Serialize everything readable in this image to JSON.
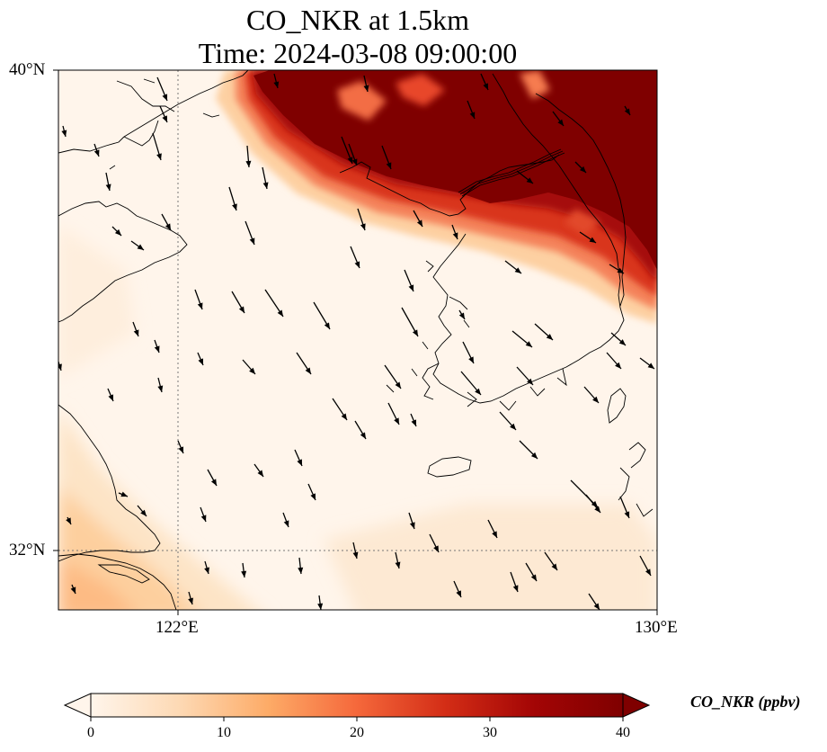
{
  "title": {
    "line1": "CO_NKR at 1.5km",
    "line2": "Time: 2024-03-08 09:00:00"
  },
  "map": {
    "lon_range": [
      118,
      130
    ],
    "lat_range": [
      31,
      40
    ],
    "gridlines": {
      "lon": 122,
      "lat": 32,
      "style": "dotted"
    },
    "lat_ticks": [
      {
        "value": 40,
        "label": "40°N"
      },
      {
        "value": 32,
        "label": "32°N"
      }
    ],
    "lon_ticks": [
      {
        "value": 122,
        "label": "122°E"
      },
      {
        "value": 130,
        "label": "130°E"
      }
    ],
    "wind_direction": "northwest"
  },
  "colorbar": {
    "label": "CO_NKR (ppbv)",
    "range": [
      0,
      40
    ],
    "extend": "both",
    "ticks": [
      {
        "value": 0,
        "label": "0"
      },
      {
        "value": 10,
        "label": "10"
      },
      {
        "value": 20,
        "label": "20"
      },
      {
        "value": 30,
        "label": "30"
      },
      {
        "value": 40,
        "label": "40"
      }
    ],
    "stops": [
      "#fff5eb",
      "#fdd9b4",
      "#fdab67",
      "#f5683b",
      "#d32d16",
      "#a30505",
      "#7f0000"
    ]
  },
  "chart_data": {
    "type": "heatmap",
    "title": "CO_NKR at 1.5km\nTime: 2024-03-08 09:00:00",
    "xlabel": "",
    "ylabel": "",
    "colorbar_label": "CO_NKR (ppbv)",
    "vmin": 0,
    "vmax": 40,
    "xlim": [
      118,
      130
    ],
    "ylim": [
      31,
      40
    ],
    "field_summary": [
      {
        "region": "northern Korea / Liaodong (north of ~37.5N, east of ~121.5E)",
        "value": 40
      },
      {
        "region": "northeast edge near 129-130E, 35.5-38N",
        "value": 35
      },
      {
        "region": "southeastern China coast (south-west corner)",
        "value": 10
      },
      {
        "region": "Yellow Sea interior",
        "value": 2
      }
    ]
  }
}
